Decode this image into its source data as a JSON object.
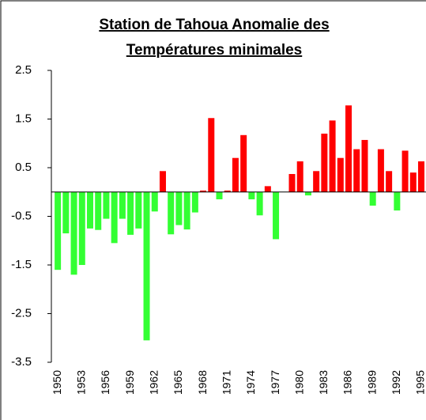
{
  "chart_data": {
    "type": "bar",
    "title": [
      "Station de Tahoua Anomalie des",
      "Températures minimales"
    ],
    "categories": [
      "1950",
      null,
      null,
      "1953",
      null,
      null,
      "1956",
      null,
      null,
      "1959",
      null,
      null,
      "1962",
      null,
      null,
      "1965",
      null,
      null,
      "1968",
      null,
      null,
      "1971",
      null,
      null,
      "1974",
      null,
      null,
      "1977",
      null,
      null,
      "1980",
      null,
      null,
      "1983",
      null,
      null,
      "1986",
      null,
      null,
      "1989",
      null,
      null,
      "1992",
      null,
      null,
      "1995",
      null
    ],
    "values": [
      -1.6,
      -0.85,
      -1.7,
      -1.5,
      -0.75,
      -0.78,
      -0.55,
      -1.05,
      -0.55,
      -0.88,
      -0.75,
      -3.05,
      -0.4,
      0.43,
      -0.87,
      -0.68,
      -0.77,
      -0.42,
      0.03,
      1.52,
      -0.15,
      0.03,
      0.7,
      1.17,
      -0.15,
      -0.48,
      0.12,
      -0.97,
      null,
      0.37,
      0.63,
      -0.07,
      0.43,
      1.2,
      1.47,
      0.7,
      1.78,
      0.88,
      1.07,
      -0.28,
      0.88,
      0.43,
      -0.38,
      0.85,
      0.4,
      0.63,
      0.6
    ],
    "positive_color": "#ff0000",
    "negative_color": "#33ff33",
    "ylim": [
      -3.5,
      2.5
    ],
    "yticks": [
      -3.5,
      -2.5,
      -1.5,
      -0.5,
      0.5,
      1.5,
      2.5
    ]
  }
}
